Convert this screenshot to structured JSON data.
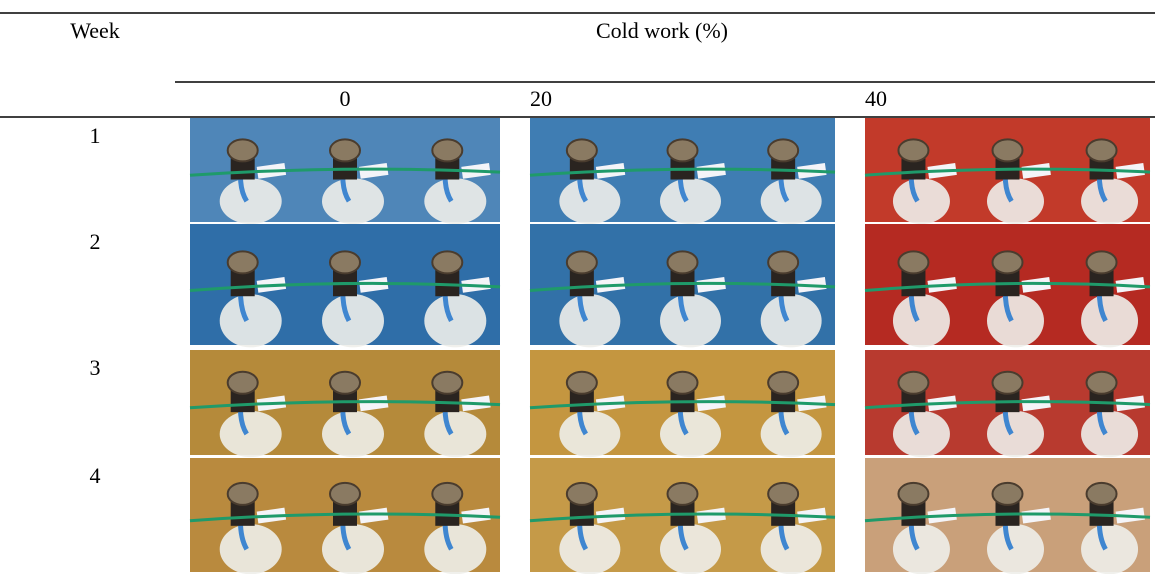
{
  "table": {
    "header": {
      "row_label": "Week",
      "group_label": "Cold work (%)",
      "columns": [
        0,
        20,
        40
      ]
    },
    "rows": [
      1,
      2,
      3,
      4
    ]
  }
}
